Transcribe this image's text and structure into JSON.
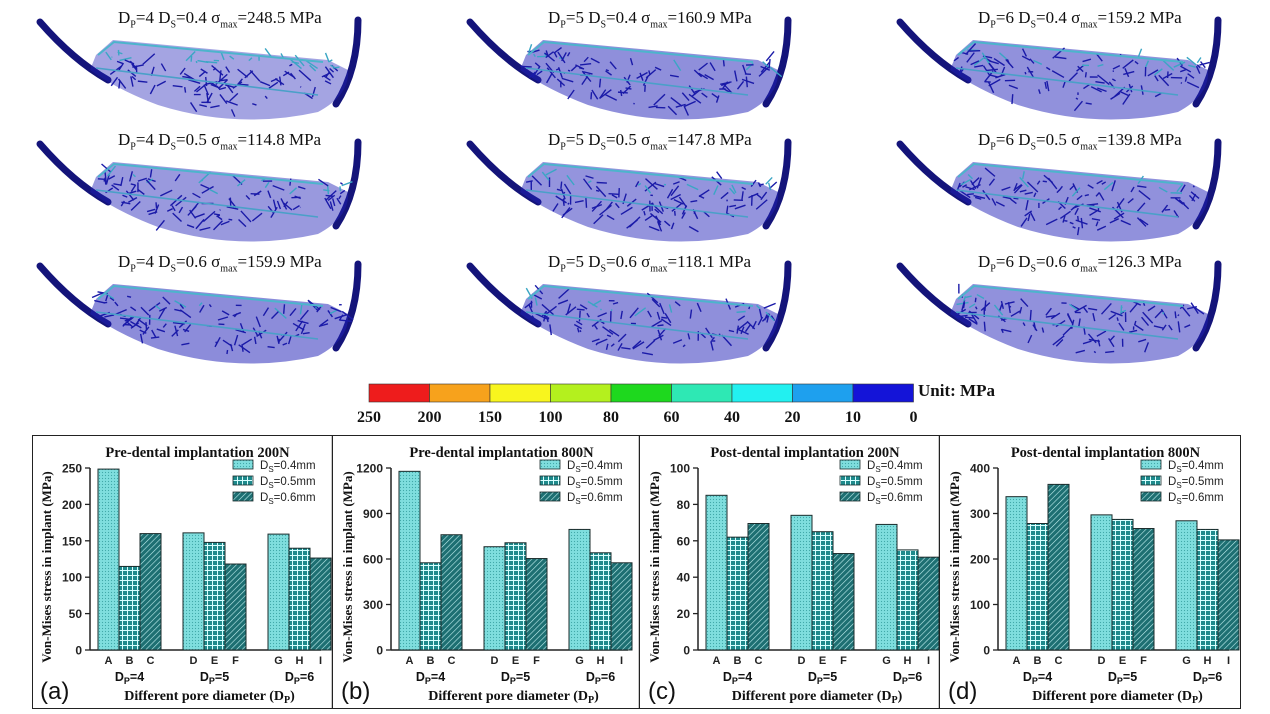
{
  "fea_maps": [
    {
      "dp": "4",
      "ds": "0.4",
      "sigma_max": "248.5",
      "unit": "MPa",
      "stress_level": 0.75
    },
    {
      "dp": "5",
      "ds": "0.4",
      "sigma_max": "160.9",
      "unit": "MPa",
      "stress_level": 0.35
    },
    {
      "dp": "6",
      "ds": "0.4",
      "sigma_max": "159.2",
      "unit": "MPa",
      "stress_level": 0.4
    },
    {
      "dp": "4",
      "ds": "0.5",
      "sigma_max": "114.8",
      "unit": "MPa",
      "stress_level": 0.55
    },
    {
      "dp": "5",
      "ds": "0.5",
      "sigma_max": "147.8",
      "unit": "MPa",
      "stress_level": 0.45
    },
    {
      "dp": "6",
      "ds": "0.5",
      "sigma_max": "139.8",
      "unit": "MPa",
      "stress_level": 0.4
    },
    {
      "dp": "4",
      "ds": "0.6",
      "sigma_max": "159.9",
      "unit": "MPa",
      "stress_level": 0.3
    },
    {
      "dp": "5",
      "ds": "0.6",
      "sigma_max": "118.1",
      "unit": "MPa",
      "stress_level": 0.35
    },
    {
      "dp": "6",
      "ds": "0.6",
      "sigma_max": "126.3",
      "unit": "MPa",
      "stress_level": 0.4
    }
  ],
  "colorbar": {
    "unit_label": "Unit: MPa",
    "ticks": [
      "250",
      "200",
      "150",
      "100",
      "80",
      "60",
      "40",
      "20",
      "10",
      "0"
    ],
    "colors": [
      "#ee1c1c",
      "#f7a21c",
      "#f8f51e",
      "#b4f01e",
      "#1ed81e",
      "#2ee8b4",
      "#22f0f0",
      "#1ea0ee",
      "#1414d8"
    ]
  },
  "colors": {
    "bar_light": "#7fdede",
    "bar_mid": "#1e8a8c",
    "bar_dark": "#1d6f72",
    "axis": "#222222"
  },
  "chart_data": [
    {
      "type": "bar",
      "panel_label": "(a)",
      "title": "Pre-dental implantation 200N",
      "ylabel": "Von-Mises stress in implant (MPa)",
      "xlabel": "Different pore diameter (DP)",
      "ylim": [
        0,
        250
      ],
      "yticks": [
        0,
        50,
        100,
        150,
        200,
        250
      ],
      "categories": [
        "A",
        "B",
        "C",
        "D",
        "E",
        "F",
        "G",
        "H",
        "I"
      ],
      "groups": [
        "DP=4",
        "DP=5",
        "DP=6"
      ],
      "legend_position": "top-right",
      "series": [
        {
          "name": "DS=0.4mm",
          "categories": [
            "A",
            "D",
            "G"
          ],
          "values": [
            248.5,
            160.9,
            159.2
          ]
        },
        {
          "name": "DS=0.5mm",
          "categories": [
            "B",
            "E",
            "H"
          ],
          "values": [
            114.8,
            147.8,
            139.8
          ]
        },
        {
          "name": "DS=0.6mm",
          "categories": [
            "C",
            "F",
            "I"
          ],
          "values": [
            159.9,
            118.1,
            126.3
          ]
        }
      ]
    },
    {
      "type": "bar",
      "panel_label": "(b)",
      "title": "Pre-dental implantation 800N",
      "ylabel": "Von-Mises stress in implant (MPa)",
      "xlabel": "Different pore diameter (DP)",
      "ylim": [
        0,
        1200
      ],
      "yticks": [
        0,
        300,
        600,
        900,
        1200
      ],
      "categories": [
        "A",
        "B",
        "C",
        "D",
        "E",
        "F",
        "G",
        "H",
        "I"
      ],
      "groups": [
        "DP=4",
        "DP=5",
        "DP=6"
      ],
      "legend_position": "top-right",
      "series": [
        {
          "name": "DS=0.4mm",
          "categories": [
            "A",
            "D",
            "G"
          ],
          "values": [
            1178,
            681,
            795
          ]
        },
        {
          "name": "DS=0.5mm",
          "categories": [
            "B",
            "E",
            "H"
          ],
          "values": [
            575,
            707,
            641
          ]
        },
        {
          "name": "DS=0.6mm",
          "categories": [
            "C",
            "F",
            "I"
          ],
          "values": [
            760,
            603,
            575
          ]
        }
      ]
    },
    {
      "type": "bar",
      "panel_label": "(c)",
      "title": "Post-dental implantation 200N",
      "ylabel": "Von-Mises stress in implant (MPa)",
      "xlabel": "Different pore diameter (DP)",
      "ylim": [
        0,
        100
      ],
      "yticks": [
        0,
        20,
        40,
        60,
        80,
        100
      ],
      "categories": [
        "A",
        "B",
        "C",
        "D",
        "E",
        "F",
        "G",
        "H",
        "I"
      ],
      "groups": [
        "DP=4",
        "DP=5",
        "DP=6"
      ],
      "legend_position": "top-right",
      "series": [
        {
          "name": "DS=0.4mm",
          "categories": [
            "A",
            "D",
            "G"
          ],
          "values": [
            85,
            74,
            69
          ]
        },
        {
          "name": "DS=0.5mm",
          "categories": [
            "B",
            "E",
            "H"
          ],
          "values": [
            62,
            65,
            55
          ]
        },
        {
          "name": "DS=0.6mm",
          "categories": [
            "C",
            "F",
            "I"
          ],
          "values": [
            69.5,
            53,
            51
          ]
        }
      ]
    },
    {
      "type": "bar",
      "panel_label": "(d)",
      "title": "Post-dental implantation 800N",
      "ylabel": "Von-Mises stress in implant (MPa)",
      "xlabel": "Different pore diameter (DP)",
      "ylim": [
        0,
        400
      ],
      "yticks": [
        0,
        100,
        200,
        300,
        400
      ],
      "categories": [
        "A",
        "B",
        "C",
        "D",
        "E",
        "F",
        "G",
        "H",
        "I"
      ],
      "groups": [
        "DP=4",
        "DP=5",
        "DP=6"
      ],
      "legend_position": "top-right",
      "series": [
        {
          "name": "DS=0.4mm",
          "categories": [
            "A",
            "D",
            "G"
          ],
          "values": [
            337,
            297,
            284
          ]
        },
        {
          "name": "DS=0.5mm",
          "categories": [
            "B",
            "E",
            "H"
          ],
          "values": [
            278,
            287,
            265
          ]
        },
        {
          "name": "DS=0.6mm",
          "categories": [
            "C",
            "F",
            "I"
          ],
          "values": [
            364,
            267,
            242
          ]
        }
      ]
    }
  ]
}
